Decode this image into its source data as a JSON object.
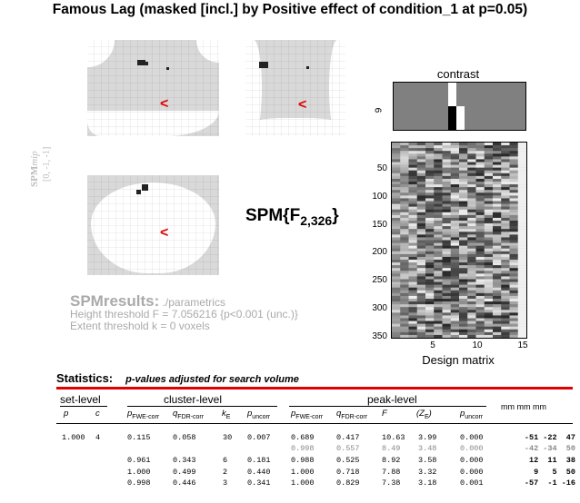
{
  "title": "Famous Lag (masked [incl.] by Positive effect of condition_1 at p=0.05)",
  "mip": {
    "label_main": "SPM",
    "label_italic": "mip",
    "coords": "[0, -1, -1]"
  },
  "stat": {
    "prefix": "SPM{F",
    "sub": "2,326",
    "suffix": "}"
  },
  "results": {
    "heading": "SPMresults:",
    "path": "./parametrics",
    "height": "Height threshold F = 7.056216  {p<0.001 (unc.)}",
    "extent": "Extent threshold k = 0 voxels"
  },
  "design": {
    "contrast_title": "contrast",
    "contrast_ytick": "9",
    "xlabel": "Design matrix",
    "yticks": [
      "50",
      "100",
      "150",
      "200",
      "250",
      "300",
      "350"
    ],
    "xticks": [
      "5",
      "10",
      "15"
    ]
  },
  "stats": {
    "heading": "Statistics:",
    "subheading": "p-values adjusted for search volume",
    "groups": {
      "set": "set-level",
      "cluster": "cluster-level",
      "peak": "peak-level",
      "mm": "mm mm mm"
    },
    "cols": {
      "p": "p",
      "c": "c",
      "pfwe": "p",
      "pfwe_sub": "FWE-corr",
      "qfdr": "q",
      "qfdr_sub": "FDR-corr",
      "ke": "k",
      "ke_sub": "E",
      "punc": "p",
      "punc_sub": "uncorr",
      "pfwe2": "p",
      "pfwe2_sub": "FWE-corr",
      "qfdr2": "q",
      "qfdr2_sub": "FDR-corr",
      "F": "F",
      "ze": "(Z",
      "ze_sub": "E",
      "ze_end": ")",
      "punc2": "p",
      "punc2_sub": "uncorr"
    },
    "rows": [
      {
        "setp": "1.000",
        "setc": "4",
        "cfwe": "0.115",
        "cfdr": "0.058",
        "ke": "30",
        "cunc": "0.007",
        "pfwe": "0.689",
        "pfdr": "0.417",
        "F": "10.63",
        "Z": "3.99",
        "punc": "0.000",
        "x": "-51",
        "y": "-22",
        "z": "47",
        "grey": false
      },
      {
        "setp": "",
        "setc": "",
        "cfwe": "",
        "cfdr": "",
        "ke": "",
        "cunc": "",
        "pfwe": "0.998",
        "pfdr": "0.557",
        "F": "8.49",
        "Z": "3.48",
        "punc": "0.000",
        "x": "-42",
        "y": "-34",
        "z": "50",
        "grey": true
      },
      {
        "setp": "",
        "setc": "",
        "cfwe": "0.961",
        "cfdr": "0.343",
        "ke": "6",
        "cunc": "0.181",
        "pfwe": "0.988",
        "pfdr": "0.525",
        "F": "8.92",
        "Z": "3.58",
        "punc": "0.000",
        "x": "12",
        "y": "11",
        "z": "38",
        "grey": false
      },
      {
        "setp": "",
        "setc": "",
        "cfwe": "1.000",
        "cfdr": "0.499",
        "ke": "2",
        "cunc": "0.440",
        "pfwe": "1.000",
        "pfdr": "0.718",
        "F": "7.88",
        "Z": "3.32",
        "punc": "0.000",
        "x": "9",
        "y": "5",
        "z": "50",
        "grey": false
      },
      {
        "setp": "",
        "setc": "",
        "cfwe": "0.998",
        "cfdr": "0.446",
        "ke": "3",
        "cunc": "0.341",
        "pfwe": "1.000",
        "pfdr": "0.829",
        "F": "7.38",
        "Z": "3.18",
        "punc": "0.001",
        "x": "-57",
        "y": "-1",
        "z": "-16",
        "grey": false
      }
    ]
  }
}
